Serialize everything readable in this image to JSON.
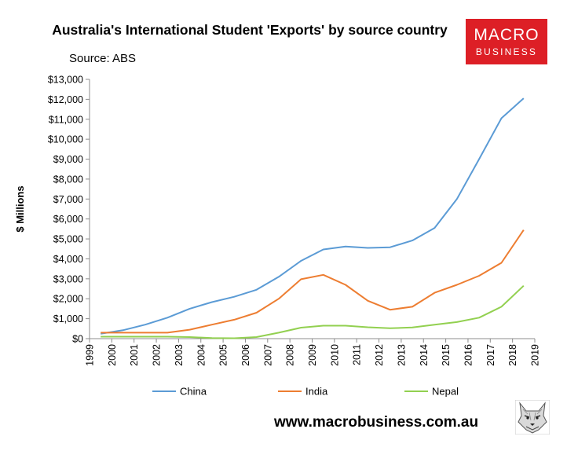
{
  "header": {
    "title": "Australia's International Student 'Exports' by source country",
    "source": "Source: ABS"
  },
  "logo": {
    "line1": "MACRO",
    "line2": "BUSINESS",
    "color": "#dd1f26"
  },
  "footer": {
    "website": "www.macrobusiness.com.au"
  },
  "chart_data": {
    "type": "line",
    "title": "Australia's International Student 'Exports' by source country",
    "ylabel": "$ Millions",
    "xlabel": "",
    "xlim": [
      1999,
      2019
    ],
    "ylim": [
      0,
      13000
    ],
    "x_ticks": [
      "1999",
      "2000",
      "2001",
      "2002",
      "2003",
      "2004",
      "2005",
      "2006",
      "2007",
      "2008",
      "2009",
      "2010",
      "2011",
      "2012",
      "2013",
      "2014",
      "2015",
      "2016",
      "2017",
      "2018",
      "2019"
    ],
    "y_ticks": [
      "$0",
      "$1,000",
      "$2,000",
      "$3,000",
      "$4,000",
      "$5,000",
      "$6,000",
      "$7,000",
      "$8,000",
      "$9,000",
      "$10,000",
      "$11,000",
      "$12,000",
      "$13,000"
    ],
    "y_tick_values": [
      0,
      1000,
      2000,
      3000,
      4000,
      5000,
      6000,
      7000,
      8000,
      9000,
      10000,
      11000,
      12000,
      13000
    ],
    "x": [
      1999.5,
      2000.5,
      2001.5,
      2002.5,
      2003.5,
      2004.5,
      2005.5,
      2006.5,
      2007.5,
      2008.5,
      2009.5,
      2010.5,
      2011.5,
      2012.5,
      2013.5,
      2014.5,
      2015.5,
      2016.5,
      2017.5,
      2018.5
    ],
    "series": [
      {
        "name": "China",
        "color": "#5b9bd5",
        "values": [
          250,
          420,
          700,
          1050,
          1500,
          1830,
          2100,
          2450,
          3100,
          3900,
          4470,
          4620,
          4550,
          4580,
          4920,
          5550,
          7000,
          9000,
          11050,
          12050
        ]
      },
      {
        "name": "India",
        "color": "#ed7d31",
        "values": [
          300,
          300,
          300,
          300,
          450,
          700,
          950,
          1300,
          2000,
          2980,
          3200,
          2700,
          1900,
          1450,
          1600,
          2300,
          2700,
          3150,
          3800,
          5450
        ]
      },
      {
        "name": "Nepal",
        "color": "#92d050",
        "values": [
          100,
          100,
          100,
          100,
          80,
          30,
          20,
          80,
          300,
          550,
          650,
          650,
          570,
          520,
          560,
          700,
          830,
          1050,
          1600,
          2650
        ]
      }
    ],
    "grid": false,
    "legend": "bottom"
  }
}
